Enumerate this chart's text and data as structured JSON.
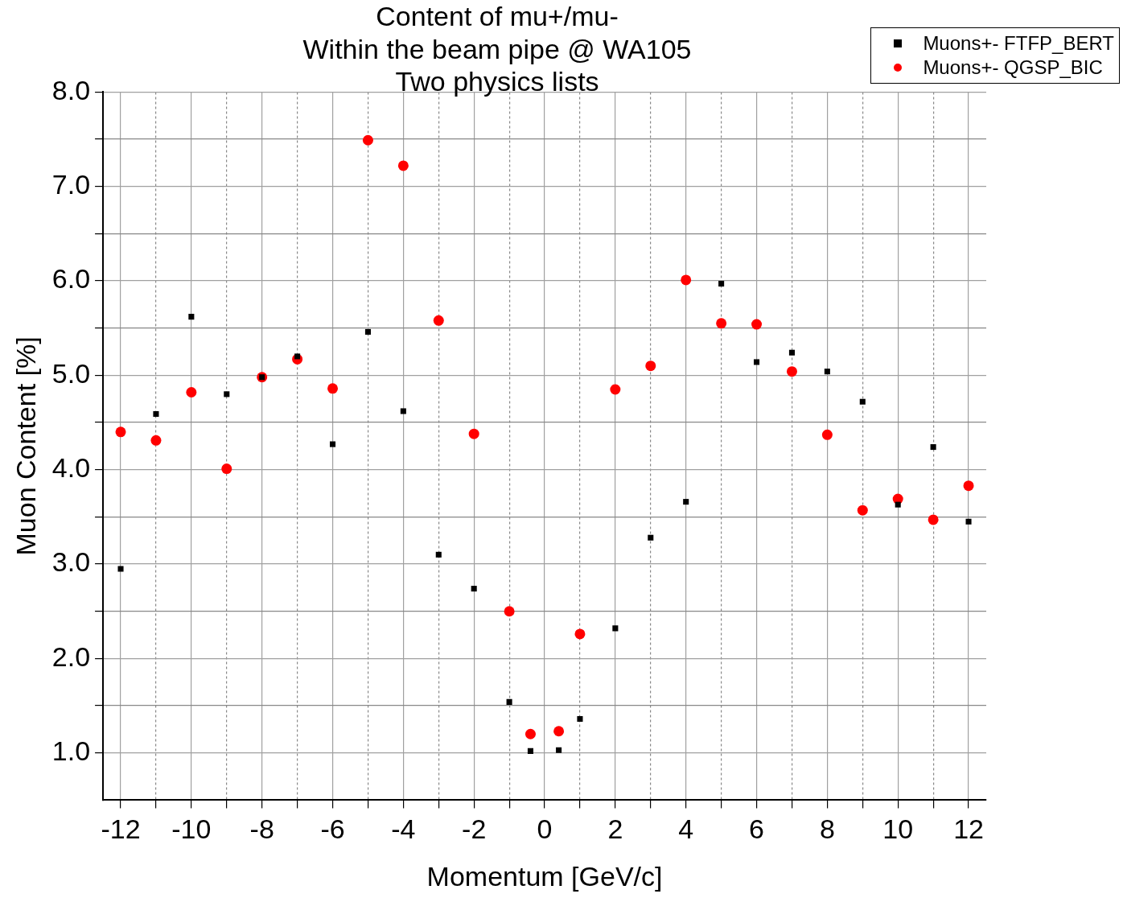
{
  "chart_data": {
    "type": "scatter",
    "title": "Content of mu+/mu-\nWithin the beam pipe @ WA105\nTwo physics lists",
    "xlabel": "Momentum [GeV/c]",
    "ylabel": "Muon Content [%]",
    "x": [
      -12,
      -11,
      -10,
      -9,
      -8,
      -7,
      -6,
      -5,
      -4,
      -3,
      -2,
      -1,
      -0.4,
      0.4,
      1,
      2,
      3,
      4,
      5,
      6,
      7,
      8,
      9,
      10,
      11,
      12
    ],
    "series": [
      {
        "name": "Muons+- FTFP_BERT",
        "color": "#000000",
        "marker": "square",
        "values": [
          2.95,
          4.59,
          5.62,
          4.8,
          4.98,
          5.2,
          4.27,
          5.46,
          4.62,
          3.1,
          2.74,
          1.54,
          1.02,
          1.03,
          1.36,
          2.32,
          3.28,
          3.66,
          5.97,
          5.14,
          5.24,
          5.04,
          4.72,
          3.63,
          4.24,
          3.45
        ]
      },
      {
        "name": "Muons+- QGSP_BIC",
        "color": "#ff0000",
        "marker": "circle",
        "values": [
          4.4,
          4.31,
          4.82,
          4.01,
          4.98,
          5.17,
          4.86,
          7.49,
          7.22,
          5.58,
          4.38,
          2.5,
          1.2,
          1.23,
          2.26,
          4.85,
          5.1,
          6.01,
          5.55,
          5.54,
          5.04,
          4.37,
          3.57,
          3.69,
          3.47,
          3.83
        ]
      }
    ],
    "xlim": [
      -12.5,
      12.5
    ],
    "xticks": [
      -12,
      {
        "value": -11,
        "label": null
      },
      -10,
      {
        "value": -9,
        "label": null
      },
      -8,
      {
        "value": -7,
        "label": null
      },
      -6,
      {
        "value": -5,
        "label": null
      },
      -4,
      {
        "value": -3,
        "label": null
      },
      -2,
      {
        "value": -1,
        "label": null
      },
      0,
      {
        "value": 1,
        "label": null
      },
      2,
      {
        "value": 3,
        "label": null
      },
      4,
      {
        "value": 5,
        "label": null
      },
      6,
      {
        "value": 7,
        "label": null
      },
      8,
      {
        "value": 9,
        "label": null
      },
      10,
      {
        "value": 11,
        "label": null
      },
      12
    ],
    "ylim": [
      0.5,
      8
    ],
    "yticks": [
      {
        "value": 1,
        "label": "1.0"
      },
      {
        "value": 1.5,
        "label": null
      },
      {
        "value": 2,
        "label": "2.0"
      },
      {
        "value": 2.5,
        "label": null
      },
      {
        "value": 3,
        "label": "3.0"
      },
      {
        "value": 3.5,
        "label": null
      },
      {
        "value": 4,
        "label": "4.0"
      },
      {
        "value": 4.5,
        "label": null
      },
      {
        "value": 5,
        "label": "5.0"
      },
      {
        "value": 5.5,
        "label": null
      },
      {
        "value": 6,
        "label": "6.0"
      },
      {
        "value": 6.5,
        "label": null
      },
      {
        "value": 7,
        "label": "7.0"
      },
      {
        "value": 7.5,
        "label": null
      },
      {
        "value": 8,
        "label": "8.0"
      }
    ],
    "grid": true,
    "legend": "top right"
  }
}
